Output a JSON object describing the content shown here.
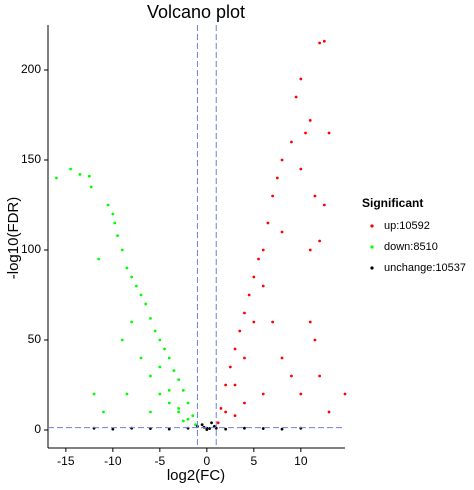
{
  "chart_data": {
    "type": "scatter",
    "title": "Volcano plot",
    "x_label": "log2(FC)",
    "y_label": "-log10(FDR)",
    "legend_title": "Significant",
    "xlim": [
      -16.9,
      14.7
    ],
    "ylim": [
      -10,
      225
    ],
    "xticks": [
      -15,
      -10,
      -5,
      0,
      5,
      10
    ],
    "yticks": [
      0,
      50,
      100,
      150,
      200
    ],
    "vlines": [
      -1,
      1
    ],
    "hline": 1.3,
    "series": [
      {
        "name": "up:10592",
        "color": "#ff0000",
        "x": [
          12.5,
          12,
          10,
          9.5,
          11,
          10.5,
          10,
          9,
          8,
          7.5,
          7,
          8,
          6.5,
          6,
          6,
          5.5,
          5,
          5,
          4.5,
          4,
          4,
          3.5,
          3,
          3,
          2.5,
          2,
          2,
          1.5,
          1.2,
          7,
          8,
          9,
          10,
          11,
          11.5,
          12,
          13,
          14.7,
          6,
          4,
          3,
          11.5,
          12.5,
          12,
          11,
          13
        ],
        "y": [
          216,
          215,
          195,
          185,
          172,
          165,
          145,
          160,
          150,
          140,
          130,
          110,
          115,
          100,
          80,
          95,
          85,
          60,
          75,
          65,
          40,
          55,
          45,
          25,
          35,
          25,
          10,
          12,
          4,
          60,
          40,
          30,
          20,
          60,
          50,
          30,
          10,
          20,
          20,
          15,
          8,
          130,
          125,
          105,
          100,
          165
        ]
      },
      {
        "name": "down:8510",
        "color": "#00ff00",
        "x": [
          -16,
          -14.5,
          -13.5,
          -12.5,
          -12.3,
          -11.5,
          -10.5,
          -10,
          -9.8,
          -9.5,
          -9,
          -8.5,
          -8,
          -8,
          -7.5,
          -7,
          -7,
          -6.5,
          -6,
          -6,
          -5.5,
          -5,
          -5,
          -4.5,
          -4,
          -4,
          -3.5,
          -3,
          -3,
          -2.5,
          -2,
          -2,
          -1.5,
          -1.2,
          -12,
          -11,
          -9,
          -8.5,
          -6,
          -5,
          -4,
          -3,
          -2.5
        ],
        "y": [
          140,
          145,
          142,
          141,
          135,
          95,
          125,
          120,
          115,
          108,
          100,
          90,
          85,
          60,
          80,
          75,
          40,
          70,
          62,
          30,
          55,
          50,
          20,
          45,
          40,
          15,
          33,
          28,
          10,
          22,
          15,
          6,
          8,
          3,
          20,
          10,
          50,
          20,
          10,
          35,
          22,
          12,
          5
        ]
      },
      {
        "name": "unchange:10537",
        "color": "#000000",
        "x": [
          -12,
          -10,
          -8,
          -6,
          -4,
          -2,
          -1,
          -0.5,
          0,
          0.5,
          0.8,
          1,
          2,
          4,
          6,
          8,
          10,
          0,
          -0.3,
          0.3
        ],
        "y": [
          1,
          0.5,
          1,
          0.8,
          0.5,
          1,
          2,
          3,
          1,
          4,
          2,
          1,
          0.5,
          1,
          0.8,
          0.5,
          1,
          0.2,
          1.5,
          0.8
        ]
      }
    ]
  }
}
